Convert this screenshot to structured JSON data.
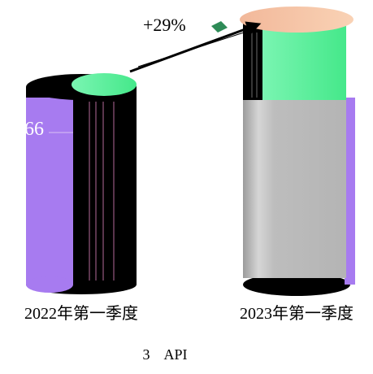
{
  "chart_data": {
    "type": "bar",
    "style": "3d-cylinder",
    "categories": [
      "2022年第一季度",
      "2023年第一季度"
    ],
    "series": [
      {
        "color": "#a77bf0",
        "values": [
          66,
          85
        ]
      },
      {
        "color": "#59f29a",
        "values": [
          6,
          17
        ]
      },
      {
        "color": "#b8b8b8",
        "values": [
          0,
          85
        ]
      }
    ],
    "data_labels": {
      "first_bar_value": "66"
    },
    "annotations": [
      {
        "text": "+29%",
        "arrow_from": "2022年第一季度",
        "arrow_to": "2023年第一季度"
      }
    ],
    "caption": "3    API",
    "colors": {
      "purple": "#a77bf0",
      "green": "#59f29a",
      "gray": "#b8b8b8",
      "peach": "#f7c9a9",
      "dark": "#000000"
    },
    "legend": "none",
    "grid": false
  }
}
